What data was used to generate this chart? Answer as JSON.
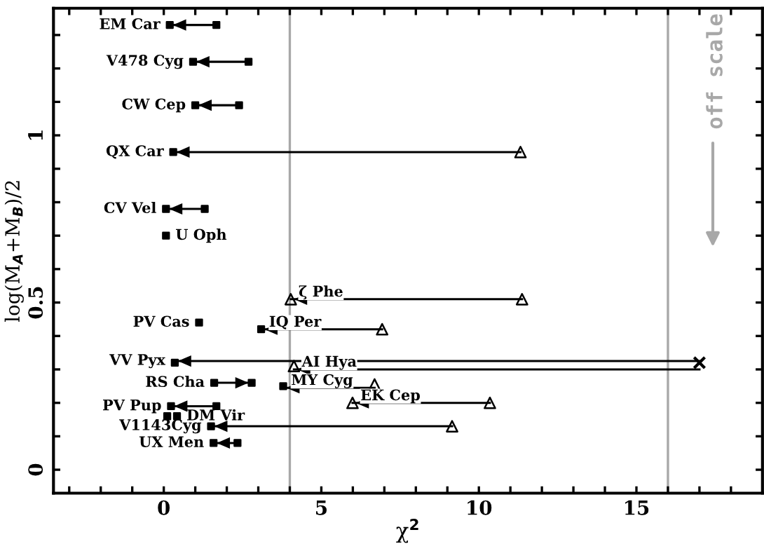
{
  "chart_data": {
    "type": "scatter",
    "xlabel": "χ$^{2}$",
    "ylabel": "log(M$_{A}$+M$_{B}$)/2",
    "xlim": [
      -3.5,
      19
    ],
    "ylim": [
      -0.07,
      1.38
    ],
    "xticks": [
      {
        "value": -3,
        "label": null
      },
      {
        "value": -2,
        "label": null
      },
      {
        "value": -1,
        "label": null
      },
      0,
      {
        "value": 1,
        "label": null
      },
      {
        "value": 2,
        "label": null
      },
      {
        "value": 3,
        "label": null
      },
      {
        "value": 4,
        "label": null
      },
      5,
      {
        "value": 6,
        "label": null
      },
      {
        "value": 7,
        "label": null
      },
      {
        "value": 8,
        "label": null
      },
      {
        "value": 9,
        "label": null
      },
      10,
      {
        "value": 11,
        "label": null
      },
      {
        "value": 12,
        "label": null
      },
      {
        "value": 13,
        "label": null
      },
      {
        "value": 14,
        "label": null
      },
      15,
      {
        "value": 16,
        "label": null
      },
      {
        "value": 17,
        "label": null
      },
      {
        "value": 18,
        "label": null
      }
    ],
    "yticks": [
      0,
      {
        "value": 0.1,
        "label": null
      },
      {
        "value": 0.2,
        "label": null
      },
      {
        "value": 0.3,
        "label": null
      },
      {
        "value": 0.4,
        "label": null
      },
      0.5,
      {
        "value": 0.6,
        "label": null
      },
      {
        "value": 0.7,
        "label": null
      },
      {
        "value": 0.8,
        "label": null
      },
      {
        "value": 0.9,
        "label": null
      },
      1,
      {
        "value": 1.1,
        "label": null
      },
      {
        "value": 1.2,
        "label": null
      },
      {
        "value": 1.3,
        "label": null
      }
    ],
    "grid": false,
    "legend": "left",
    "ref_lines": [
      {
        "axis": "x",
        "value": 4,
        "color": "#a8a8a8"
      },
      {
        "axis": "x",
        "value": 16,
        "color": "#a8a8a8"
      }
    ],
    "series": [
      {
        "color": "#000000",
        "marker": "square",
        "x": [
          0.19,
          1.67,
          0.93,
          2.69,
          1.0,
          2.39,
          0.3,
          0.07,
          1.3,
          3.09,
          0.35,
          1.6,
          2.79,
          3.79,
          0.23,
          1.67,
          1.5,
          1.58,
          2.34
        ],
        "values": [
          1.33,
          1.33,
          1.22,
          1.22,
          1.09,
          1.09,
          0.95,
          0.78,
          0.78,
          0.42,
          0.32,
          0.26,
          0.26,
          0.25,
          0.19,
          0.19,
          0.13,
          0.08,
          0.08
        ]
      },
      {
        "color": "#000000",
        "marker": "triangle",
        "x": [
          11.32,
          4.03,
          11.37,
          6.93,
          4.13,
          6.69,
          5.99,
          10.35,
          9.15
        ],
        "values": [
          0.95,
          0.51,
          0.51,
          0.42,
          0.31,
          0.255,
          0.2,
          0.2,
          0.13
        ]
      },
      {
        "color": "#000000",
        "marker": "cross",
        "x": [
          17.0
        ],
        "values": [
          0.32
        ]
      },
      {
        "name": "EM Car",
        "type": "line",
        "color": "#000000",
        "x": [
          1.67,
          0.19
        ],
        "values": [
          1.33,
          1.33
        ]
      },
      {
        "name": "V478 Cyg",
        "type": "line",
        "color": "#000000",
        "x": [
          2.69,
          0.93
        ],
        "values": [
          1.22,
          1.22
        ]
      },
      {
        "name": "CW Cep",
        "type": "line",
        "color": "#000000",
        "x": [
          2.39,
          1.0
        ],
        "values": [
          1.09,
          1.09
        ]
      },
      {
        "name": "QX Car",
        "type": "line",
        "color": "#000000",
        "x": [
          11.32,
          0.3
        ],
        "values": [
          0.95,
          0.95
        ]
      },
      {
        "name": "CV Vel",
        "type": "line",
        "color": "#000000",
        "x": [
          1.3,
          0.07
        ],
        "values": [
          0.78,
          0.78
        ]
      },
      {
        "name": "U Oph",
        "color": "#000000",
        "marker": "square",
        "x": [
          0.07
        ],
        "values": [
          0.7
        ]
      },
      {
        "name": "ζ Phe",
        "type": "line",
        "color": "#000000",
        "x": [
          11.37,
          4.03
        ],
        "values": [
          0.51,
          0.51
        ]
      },
      {
        "name": "PV Cas",
        "color": "#000000",
        "marker": "square",
        "x": [
          1.12
        ],
        "values": [
          0.44
        ]
      },
      {
        "name": "IQ Per",
        "type": "line",
        "color": "#000000",
        "x": [
          6.93,
          3.09
        ],
        "values": [
          0.42,
          0.42
        ]
      },
      {
        "name": "VV Pyx",
        "type": "line",
        "color": "#000000",
        "x": [
          17.0,
          0.35
        ],
        "values": [
          0.325,
          0.325
        ]
      },
      {
        "name": "AI Hya",
        "type": "line",
        "color": "#000000",
        "x": [
          17.0,
          4.13
        ],
        "values": [
          0.3,
          0.3
        ]
      },
      {
        "name": "RS Cha",
        "type": "line",
        "color": "#000000",
        "x": [
          1.6,
          2.79
        ],
        "values": [
          0.26,
          0.26
        ]
      },
      {
        "name": "MY Cyg",
        "type": "line",
        "color": "#000000",
        "x": [
          6.69,
          3.79
        ],
        "values": [
          0.245,
          0.245
        ]
      },
      {
        "name": "EK Cep",
        "type": "line",
        "color": "#000000",
        "x": [
          10.35,
          5.99
        ],
        "values": [
          0.2,
          0.2
        ]
      },
      {
        "name": "PV Pup",
        "type": "line",
        "color": "#000000",
        "x": [
          1.67,
          0.23
        ],
        "values": [
          0.19,
          0.19
        ]
      },
      {
        "name": "DM Vir",
        "color": "#000000",
        "marker": "square",
        "x": [
          0.11,
          0.42
        ],
        "values": [
          0.16,
          0.16
        ]
      },
      {
        "name": "V1143Cyg",
        "type": "line",
        "color": "#000000",
        "x": [
          9.15,
          1.5
        ],
        "values": [
          0.13,
          0.13
        ]
      },
      {
        "name": "UX Men",
        "type": "line",
        "color": "#000000",
        "x": [
          2.34,
          1.58
        ],
        "values": [
          0.08,
          0.08
        ]
      }
    ],
    "annotations": [
      "off scale"
    ]
  }
}
